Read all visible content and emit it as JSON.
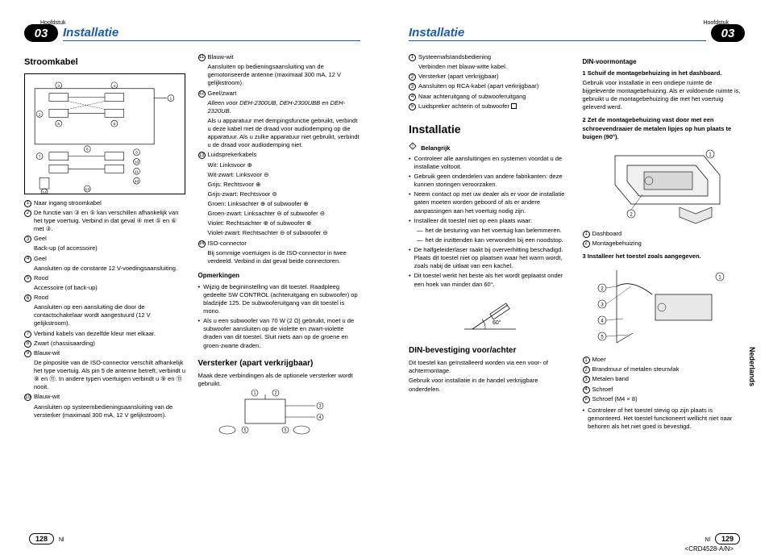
{
  "header": {
    "hoofdstuk": "Hoofdstuk",
    "section_num": "03",
    "section_title": "Installatie"
  },
  "left_page": {
    "col1": {
      "h3": "Stroomkabel",
      "items": [
        {
          "n": "1",
          "t": "Naar ingang stroomkabel"
        },
        {
          "n": "2",
          "t": "De functie van ③ en ⑤ kan verschillen afhankelijk van het type voertuig. Verbind in dat geval ④ met ⑤ en ⑥ met ③."
        },
        {
          "n": "3",
          "t": "Geel"
        },
        {
          "n": "",
          "t": "Back-up (of accessoire)",
          "indent": true
        },
        {
          "n": "4",
          "t": "Geel"
        },
        {
          "n": "",
          "t": "Aansluiten op de constante 12 V-voedingsaansluiting.",
          "indent": true
        },
        {
          "n": "5",
          "t": "Rood"
        },
        {
          "n": "",
          "t": "Accessoire (of back-up)",
          "indent": true
        },
        {
          "n": "6",
          "t": "Rood"
        },
        {
          "n": "",
          "t": "Aansluiten op een aansluiting die door de contactschakelaar wordt aangestuurd (12 V gelijkstroom).",
          "indent": true
        },
        {
          "n": "7",
          "t": "Verbind kabels van dezelfde kleur met elkaar."
        },
        {
          "n": "8",
          "t": "Zwart (chassisaarding)"
        },
        {
          "n": "9",
          "t": "Blauw-wit"
        },
        {
          "n": "",
          "t": "De pinpositie van de ISO-connector verschilt afhankelijk het type voertuig. Als pin 5 de antenne betreft, verbindt u ⑨ en ⑪. In andere typen voertuigen verbindt u ⑨ en ⑪ nooit.",
          "indent": true
        },
        {
          "n": "10",
          "t": "Blauw-wit"
        },
        {
          "n": "",
          "t": "Aansluiten op systeembedieningsaansluiting van de versterker (maximaal 300 mA, 12 V gelijkstroom).",
          "indent": true
        }
      ]
    },
    "col2": {
      "items_top": [
        {
          "n": "11",
          "t": "Blauw-wit"
        },
        {
          "n": "",
          "t": "Aansluiten op bedieningsaansluiting van de gemotoriseerde antenne (maximaal 300 mA, 12 V gelijkstroom).",
          "indent": true
        },
        {
          "n": "12",
          "t": "Geel/zwart"
        },
        {
          "n": "",
          "t": "Alleen voor DEH-2300UB, DEH-2300UBB en DEH-2320UB.",
          "indent": true,
          "italic": true
        },
        {
          "n": "",
          "t": "Als u apparatuur met dempingsfunctie gebruikt, verbindt u deze kabel met de draad voor audiodemping op die apparatuur. Als u zulke apparatuur niet gebruikt, verbindt u de draad voor audiodemping niet.",
          "indent": true
        },
        {
          "n": "13",
          "t": "Luidsprekerkabels"
        },
        {
          "n": "",
          "t": "Wit: Linksvoor ⊕",
          "indent": true
        },
        {
          "n": "",
          "t": "Wit-zwart: Linksvoor ⊖",
          "indent": true
        },
        {
          "n": "",
          "t": "Grijs: Rechtsvoor ⊕",
          "indent": true
        },
        {
          "n": "",
          "t": "Grijs-zwart: Rechtsvoor ⊖",
          "indent": true
        },
        {
          "n": "",
          "t": "Groen: Linksachter ⊕ of subwoofer ⊕",
          "indent": true
        },
        {
          "n": "",
          "t": "Groen-zwart: Linksachter ⊖ of subwoofer ⊖",
          "indent": true
        },
        {
          "n": "",
          "t": "Violet: Rechtsachter ⊕ of subwoofer ⊕",
          "indent": true
        },
        {
          "n": "",
          "t": "Violet-zwart: Rechtsachter ⊖ of subwoofer ⊖",
          "indent": true
        },
        {
          "n": "14",
          "t": "ISO-connector"
        },
        {
          "n": "",
          "t": "Bij sommige voertuigen is de ISO-connector in twee verdeeld. Verbind in dat geval beide connectoren.",
          "indent": true
        }
      ],
      "opm_head": "Opmerkingen",
      "opm": [
        "Wijzig de begininstelling van dit toestel. Raadpleeg gedeelte SW CONTROL (achteruitgang en subwoofer) op bladzijde 125. De subwooferuitgang van dit toestel is mono.",
        "Als u een subwoofer van 70 W (2 Ω) gebruikt, moet u de subwoofer aansluiten op de violette en zwart-violette draden van dit toestel. Sluit niets aan op de groene en groen-zwarte draden."
      ],
      "h4": "Versterker (apart verkrijgbaar)",
      "p": "Maak deze verbindingen als de optionele versterker wordt gebruikt."
    },
    "page_num": "128",
    "lang": "Nl"
  },
  "right_page": {
    "col1": {
      "items_top": [
        {
          "n": "1",
          "t": "Systeemafstandsbediening"
        },
        {
          "n": "",
          "t": "Verbinden met blauw-witte kabel.",
          "indent": true
        },
        {
          "n": "2",
          "t": "Versterker (apart verkrijgbaar)"
        },
        {
          "n": "3",
          "t": "Aansluiten op RCA-kabel (apart verkrijgbaar)"
        },
        {
          "n": "4",
          "t": "Naar achteruitgang of subwooferuitgang"
        },
        {
          "n": "5",
          "t": "Luidspreker achterin of subwoofer"
        }
      ],
      "h2": "Installatie",
      "belangrijk": "Belangrijk",
      "bul": [
        "Controleer alle aansluitingen en systemen voordat u de installatie voltooit.",
        "Gebruik geen onderdelen van andere fabrikanten: deze kunnen storingen veroorzaken.",
        "Neem contact op met uw dealer als er voor de installatie gaten moeten worden geboord of als er andere aanpassingen aan het voertuig nodig zijn.",
        "Installeer dit toestel niet op een plaats waar:"
      ],
      "dashes": [
        "het de besturing van het voertuig kan belemmeren.",
        "het de inzittenden kan verwonden bij een noodstop."
      ],
      "bul2": [
        "De halfgeleiderlaser raakt bij oververhitting beschadigd. Plaats dit toestel niet op plaatsen waar het warm wordt, zoals nabij de uitlaat van een kachel.",
        "Dit toestel werkt het beste als het wordt geplaatst onder een hoek van minder dan 60°."
      ],
      "angle": "60°",
      "h4": "DIN-bevestiging voor/achter",
      "p1": "Dit toestel kan geïnstalleerd worden via een voor- of achtermontage.",
      "p2": "Gebruik voor installatie in de handel verkrijgbare onderdelen."
    },
    "col2": {
      "h5a": "DIN-voormontage",
      "step1_head": "1   Schuif de montagebehuizing in het dashboard.",
      "step1_body": "Gebruik voor installatie in een ondiepe ruimte de bijgeleverde montagebehuizing. Als er voldoende ruimte is, gebruikt u de montagebehuizing die met het voertuig geleverd werd.",
      "step2_head": "2   Zet de montagebehuizing vast door met een schroevendraaier de metalen lipjes op hun plaats te buigen (90°).",
      "fig1_items": [
        {
          "n": "1",
          "t": "Dashboard"
        },
        {
          "n": "2",
          "t": "Montagebehuizing"
        }
      ],
      "step3_head": "3   Installeer het toestel zoals aangegeven.",
      "fig2_items": [
        {
          "n": "1",
          "t": "Moer"
        },
        {
          "n": "2",
          "t": "Brandmuur of metalen steunvlak"
        },
        {
          "n": "3",
          "t": "Metalen band"
        },
        {
          "n": "4",
          "t": "Schroef"
        },
        {
          "n": "5",
          "t": "Schroef (M4 × 8)"
        }
      ],
      "bul3": [
        "Controleer of het toestel stevig op zijn plaats is gemonteerd. Het toestel functioneert wellicht niet naar behoren als het niet goed is bevestigd."
      ]
    },
    "page_num": "129",
    "lang": "Nl",
    "side": "Nederlands",
    "docid": "<CRD4528-A/N>"
  }
}
